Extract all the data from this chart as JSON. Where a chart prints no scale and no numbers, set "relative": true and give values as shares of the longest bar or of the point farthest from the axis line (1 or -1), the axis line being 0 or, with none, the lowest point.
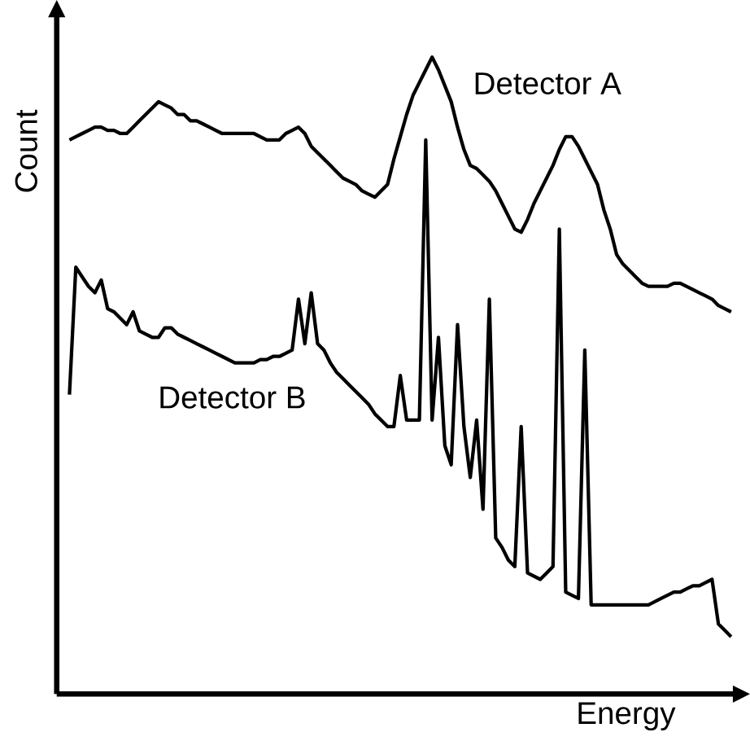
{
  "chart_data": {
    "type": "line",
    "relative": true,
    "xlabel": "Energy",
    "ylabel": "Count",
    "marker": "none",
    "line_style": "solid",
    "categories": [
      null,
      null,
      null,
      null,
      null,
      null,
      null,
      null,
      null,
      null,
      null,
      null,
      null,
      null,
      null,
      null,
      null,
      null,
      null,
      null,
      null,
      null,
      null,
      null,
      null,
      null,
      null,
      null,
      null,
      null,
      null,
      null,
      null,
      null,
      null,
      null,
      null,
      null,
      null,
      null,
      null,
      null,
      null,
      null,
      null,
      null,
      null,
      null,
      null,
      null,
      null,
      null,
      null,
      null,
      null,
      null,
      null,
      null,
      null,
      null,
      null,
      null,
      null,
      null,
      null,
      null,
      null,
      null,
      null,
      null,
      null,
      null,
      null,
      null,
      null,
      null,
      null,
      null,
      null,
      null,
      null,
      null,
      null,
      null,
      null,
      null,
      null,
      null,
      null,
      null,
      null,
      null,
      null,
      null,
      null,
      null,
      null,
      null,
      null,
      null,
      null,
      null,
      null,
      null,
      null
    ],
    "series": [
      {
        "name": "Detector A",
        "color": "#000000",
        "values": [
          0.87,
          0.875,
          0.88,
          0.885,
          0.89,
          0.89,
          0.885,
          0.885,
          0.88,
          0.88,
          0.89,
          0.9,
          0.91,
          0.92,
          0.93,
          0.925,
          0.92,
          0.91,
          0.91,
          0.9,
          0.9,
          0.895,
          0.89,
          0.885,
          0.88,
          0.88,
          0.88,
          0.88,
          0.88,
          0.88,
          0.875,
          0.87,
          0.87,
          0.87,
          0.88,
          0.885,
          0.89,
          0.88,
          0.86,
          0.85,
          0.84,
          0.83,
          0.82,
          0.81,
          0.805,
          0.8,
          0.79,
          0.785,
          0.78,
          0.79,
          0.8,
          0.84,
          0.875,
          0.91,
          0.94,
          0.96,
          0.98,
          1.0,
          0.98,
          0.955,
          0.93,
          0.89,
          0.855,
          0.83,
          0.825,
          0.815,
          0.805,
          0.79,
          0.77,
          0.75,
          0.73,
          0.725,
          0.745,
          0.77,
          0.79,
          0.81,
          0.83,
          0.855,
          0.875,
          0.875,
          0.86,
          0.84,
          0.82,
          0.8,
          0.76,
          0.73,
          0.69,
          0.675,
          0.665,
          0.655,
          0.645,
          0.64,
          0.64,
          0.64,
          0.64,
          0.645,
          0.645,
          0.64,
          0.635,
          0.63,
          0.625,
          0.62,
          0.61,
          0.605,
          0.6
        ]
      },
      {
        "name": "Detector B",
        "color": "#000000",
        "values": [
          0.47,
          0.67,
          0.655,
          0.64,
          0.63,
          0.65,
          0.605,
          0.6,
          0.59,
          0.58,
          0.6,
          0.57,
          0.565,
          0.56,
          0.56,
          0.575,
          0.575,
          0.565,
          0.56,
          0.555,
          0.55,
          0.545,
          0.54,
          0.535,
          0.53,
          0.525,
          0.52,
          0.52,
          0.52,
          0.52,
          0.525,
          0.525,
          0.53,
          0.53,
          0.535,
          0.54,
          0.62,
          0.55,
          0.63,
          0.55,
          0.54,
          0.52,
          0.505,
          0.495,
          0.485,
          0.475,
          0.465,
          0.455,
          0.44,
          0.43,
          0.42,
          0.42,
          0.5,
          0.43,
          0.43,
          0.43,
          0.87,
          0.43,
          0.56,
          0.39,
          0.36,
          0.58,
          0.42,
          0.34,
          0.43,
          0.29,
          0.62,
          0.245,
          0.23,
          0.21,
          0.2,
          0.42,
          0.19,
          0.185,
          0.18,
          0.19,
          0.2,
          0.73,
          0.16,
          0.155,
          0.15,
          0.54,
          0.14,
          0.14,
          0.14,
          0.14,
          0.14,
          0.14,
          0.14,
          0.14,
          0.14,
          0.14,
          0.145,
          0.15,
          0.155,
          0.16,
          0.16,
          0.165,
          0.17,
          0.17,
          0.175,
          0.18,
          0.11,
          0.1,
          0.09
        ]
      }
    ]
  }
}
